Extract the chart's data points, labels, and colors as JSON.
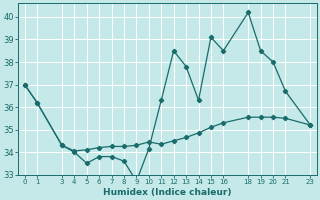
{
  "xlabel": "Humidex (Indice chaleur)",
  "bg_color": "#c5e8e8",
  "grid_color": "#ffffff",
  "line_color": "#1a6b6b",
  "xlim": [
    -0.5,
    23.5
  ],
  "ylim": [
    33.0,
    40.6
  ],
  "yticks": [
    33,
    34,
    35,
    36,
    37,
    38,
    39,
    40
  ],
  "xtick_positions": [
    0,
    1,
    3,
    4,
    5,
    6,
    7,
    8,
    9,
    10,
    11,
    12,
    13,
    14,
    15,
    16,
    18,
    19,
    20,
    21,
    23
  ],
  "xtick_labels": [
    "0",
    "1",
    "3",
    "4",
    "5",
    "6",
    "7",
    "8",
    "9",
    "10",
    "11",
    "12",
    "13",
    "14",
    "15",
    "16",
    "18",
    "19",
    "20",
    "21",
    "23"
  ],
  "line1_x": [
    0,
    1,
    3,
    4,
    5,
    6,
    7,
    8,
    9,
    10,
    11,
    12,
    13,
    14,
    15,
    16,
    18,
    19,
    20,
    21,
    23
  ],
  "line1_y": [
    37.0,
    36.2,
    34.3,
    34.0,
    33.5,
    33.8,
    33.8,
    33.6,
    32.7,
    34.15,
    36.3,
    38.5,
    37.8,
    36.3,
    39.1,
    38.5,
    40.2,
    38.5,
    38.0,
    36.7,
    35.2
  ],
  "line2_x": [
    0,
    1,
    3,
    4,
    5,
    6,
    7,
    8,
    9,
    10,
    11,
    12,
    13,
    14,
    15,
    16,
    18,
    19,
    20,
    21,
    23
  ],
  "line2_y": [
    37.0,
    36.2,
    34.3,
    34.05,
    34.1,
    34.2,
    34.25,
    34.25,
    34.3,
    34.45,
    34.35,
    34.5,
    34.65,
    34.85,
    35.1,
    35.3,
    35.55,
    35.55,
    35.55,
    35.5,
    35.2
  ]
}
